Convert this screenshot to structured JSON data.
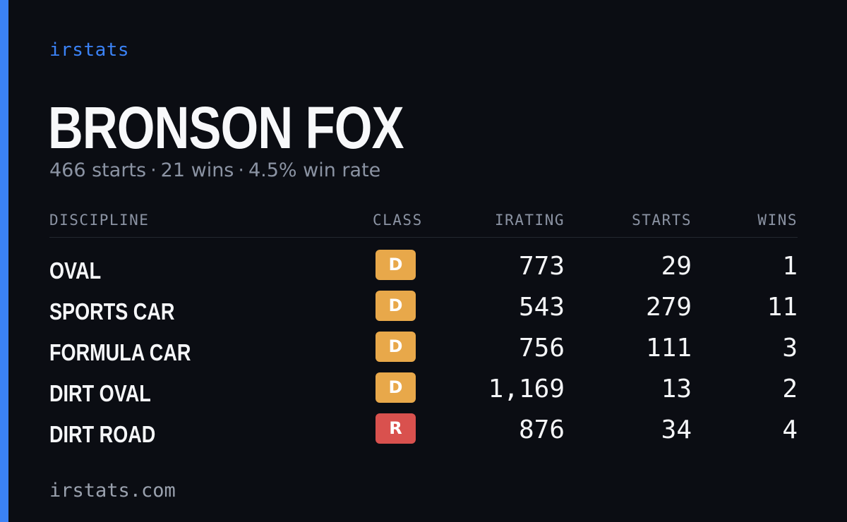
{
  "brand": "irstats",
  "driver": {
    "name": "BRONSON FOX",
    "starts_text": "466 starts",
    "wins_text": "21 wins",
    "win_rate_text": "4.5% win rate",
    "separator": "·"
  },
  "table": {
    "headers": {
      "discipline": "DISCIPLINE",
      "class": "CLASS",
      "irating": "IRATING",
      "starts": "STARTS",
      "wins": "WINS"
    },
    "rows": [
      {
        "discipline": "OVAL",
        "class": "D",
        "irating": "773",
        "starts": "29",
        "wins": "1"
      },
      {
        "discipline": "SPORTS CAR",
        "class": "D",
        "irating": "543",
        "starts": "279",
        "wins": "11"
      },
      {
        "discipline": "FORMULA CAR",
        "class": "D",
        "irating": "756",
        "starts": "111",
        "wins": "3"
      },
      {
        "discipline": "DIRT OVAL",
        "class": "D",
        "irating": "1,169",
        "starts": "13",
        "wins": "2"
      },
      {
        "discipline": "DIRT ROAD",
        "class": "R",
        "irating": "876",
        "starts": "34",
        "wins": "4"
      }
    ]
  },
  "footer": "irstats.com",
  "colors": {
    "background": "#0b0d13",
    "accent": "#3b82f6",
    "class_d": "#e8a84a",
    "class_r": "#d9514e",
    "muted_text": "#8b93a3"
  }
}
